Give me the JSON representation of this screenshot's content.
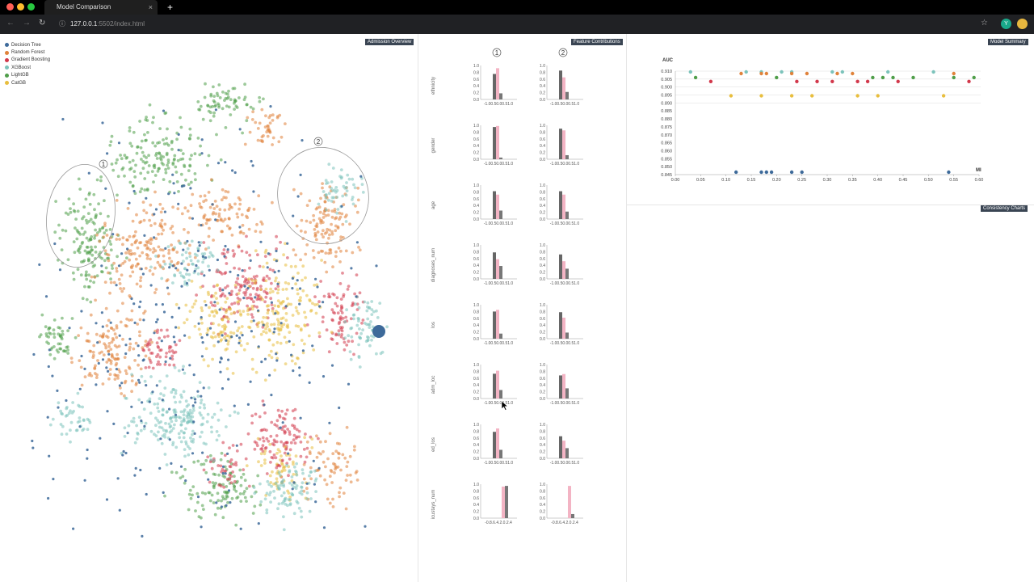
{
  "browser": {
    "tab_title": "Model Comparison",
    "tab_close": "×",
    "new_tab": "+",
    "url_host": "127.0.0.1",
    "url_rest": ":5502/index.html",
    "profile_initial": "Y"
  },
  "panels": {
    "admission_overview": "Admission Overview",
    "feature_contributions": "Feature Contributions",
    "model_summary": "Model Summary",
    "consistency_charts": "Consistency Charts"
  },
  "legend": [
    {
      "label": "Decision Tree",
      "color": "#3d6a9a"
    },
    {
      "label": "Random Forest",
      "color": "#e0823a"
    },
    {
      "label": "Gradient Boosting",
      "color": "#d2384b"
    },
    {
      "label": "XGBoost",
      "color": "#7cc3bb"
    },
    {
      "label": "LightGB",
      "color": "#4f9e49"
    },
    {
      "label": "CatGB",
      "color": "#e8be3e"
    }
  ],
  "lasso_labels": [
    "1",
    "2"
  ],
  "feature_contributions": {
    "groups": [
      "1",
      "2"
    ],
    "features": [
      "ethnicity",
      "gender",
      "age",
      "diagnoses_num",
      "los",
      "adm_loc",
      "ed_los",
      "icustays_num"
    ],
    "yticks": [
      "1.0",
      "0.8",
      "0.6",
      "0.4",
      "0.2",
      "0.0"
    ],
    "xtick_text": "-1.00.50.00.51.0",
    "xtick_text_last": "-0.8.6.4.2.0.2.4",
    "bars": {
      "1": [
        [
          0.75,
          0.92,
          0.18
        ],
        [
          0.95,
          0.98,
          0.05
        ],
        [
          0.82,
          0.72,
          0.25
        ],
        [
          0.78,
          0.58,
          0.38
        ],
        [
          0.8,
          0.85,
          0.15
        ],
        [
          0.73,
          0.82,
          0.25
        ],
        [
          0.78,
          0.88,
          0.25
        ],
        [
          0.0,
          0.93,
          0.95
        ]
      ],
      "2": [
        [
          0.85,
          0.65,
          0.22
        ],
        [
          0.9,
          0.85,
          0.12
        ],
        [
          0.82,
          0.72,
          0.22
        ],
        [
          0.72,
          0.52,
          0.3
        ],
        [
          0.78,
          0.62,
          0.18
        ],
        [
          0.68,
          0.72,
          0.3
        ],
        [
          0.65,
          0.52,
          0.3
        ],
        [
          0.0,
          0.95,
          0.12
        ]
      ]
    }
  },
  "model_summary": {
    "y_label": "AUC",
    "x_label": "MI",
    "yticks": [
      "0.910",
      "0.905",
      "0.900",
      "0.895",
      "0.890",
      "0.885",
      "0.880",
      "0.875",
      "0.870",
      "0.865",
      "0.860",
      "0.855",
      "0.850",
      "0.845"
    ],
    "xticks": [
      "0.00",
      "0.05",
      "0.10",
      "0.15",
      "0.20",
      "0.25",
      "0.30",
      "0.35",
      "0.40",
      "0.45",
      "0.50",
      "0.55",
      "0.60"
    ],
    "series": [
      {
        "color": "#7cc3bb",
        "auc": 0.9095,
        "mi": [
          0.03,
          0.14,
          0.17,
          0.21,
          0.23,
          0.31,
          0.33,
          0.42,
          0.51
        ]
      },
      {
        "color": "#e0823a",
        "auc": 0.9085,
        "mi": [
          0.13,
          0.17,
          0.18,
          0.23,
          0.26,
          0.32,
          0.35,
          0.55
        ]
      },
      {
        "color": "#4f9e49",
        "auc": 0.906,
        "mi": [
          0.04,
          0.2,
          0.39,
          0.41,
          0.43,
          0.47,
          0.55,
          0.59
        ]
      },
      {
        "color": "#d2384b",
        "auc": 0.9035,
        "mi": [
          0.07,
          0.24,
          0.28,
          0.31,
          0.36,
          0.38,
          0.44,
          0.58
        ]
      },
      {
        "color": "#e8be3e",
        "auc": 0.8945,
        "mi": [
          0.11,
          0.17,
          0.23,
          0.27,
          0.36,
          0.4,
          0.53
        ]
      },
      {
        "color": "#3d6a9a",
        "auc": 0.8465,
        "mi": [
          0.12,
          0.17,
          0.18,
          0.19,
          0.23,
          0.25,
          0.54
        ]
      }
    ]
  }
}
